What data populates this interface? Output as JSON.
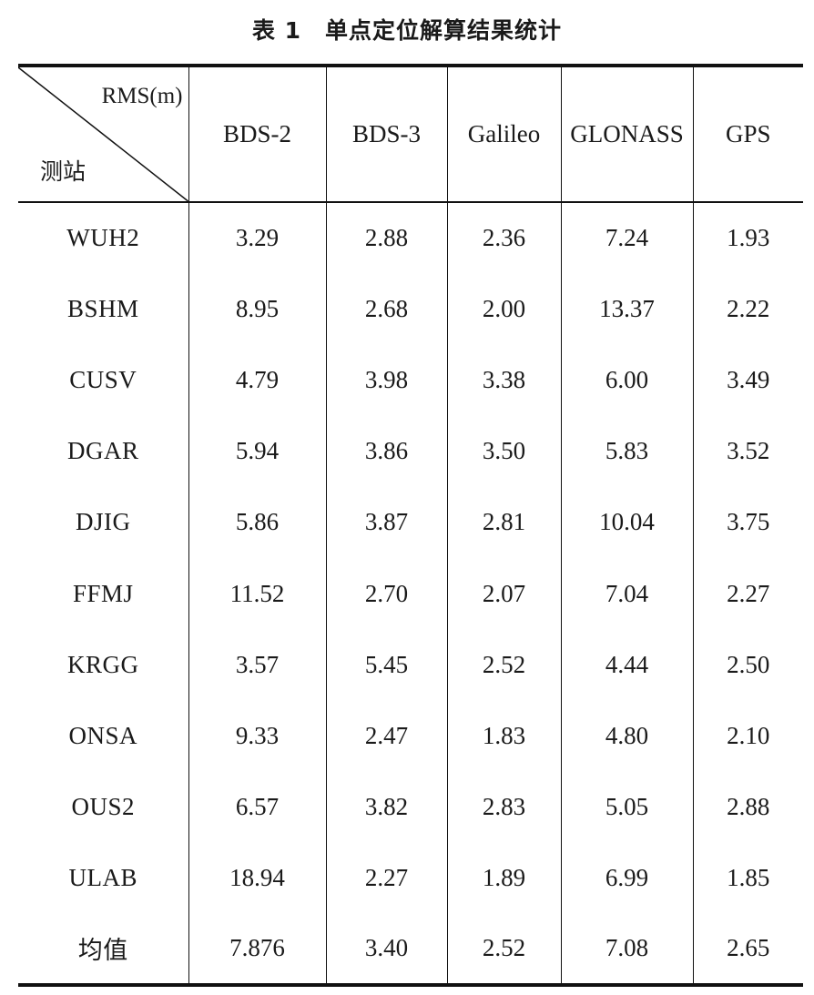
{
  "caption": {
    "number": "表 1",
    "text": "单点定位解算结果统计"
  },
  "table": {
    "corner": {
      "top": "RMS(m)",
      "bottom": "测站"
    },
    "columns": [
      "BDS-2",
      "BDS-3",
      "Galileo",
      "GLONASS",
      "GPS"
    ],
    "rows": [
      {
        "station": "WUH2",
        "values": [
          "3.29",
          "2.88",
          "2.36",
          "7.24",
          "1.93"
        ]
      },
      {
        "station": "BSHM",
        "values": [
          "8.95",
          "2.68",
          "2.00",
          "13.37",
          "2.22"
        ]
      },
      {
        "station": "CUSV",
        "values": [
          "4.79",
          "3.98",
          "3.38",
          "6.00",
          "3.49"
        ]
      },
      {
        "station": "DGAR",
        "values": [
          "5.94",
          "3.86",
          "3.50",
          "5.83",
          "3.52"
        ]
      },
      {
        "station": "DJIG",
        "values": [
          "5.86",
          "3.87",
          "2.81",
          "10.04",
          "3.75"
        ]
      },
      {
        "station": "FFMJ",
        "values": [
          "11.52",
          "2.70",
          "2.07",
          "7.04",
          "2.27"
        ]
      },
      {
        "station": "KRGG",
        "values": [
          "3.57",
          "5.45",
          "2.52",
          "4.44",
          "2.50"
        ]
      },
      {
        "station": "ONSA",
        "values": [
          "9.33",
          "2.47",
          "1.83",
          "4.80",
          "2.10"
        ]
      },
      {
        "station": "OUS2",
        "values": [
          "6.57",
          "3.82",
          "2.83",
          "5.05",
          "2.88"
        ]
      },
      {
        "station": "ULAB",
        "values": [
          "18.94",
          "2.27",
          "1.89",
          "6.99",
          "1.85"
        ]
      },
      {
        "station": "均值",
        "values": [
          "7.876",
          "3.40",
          "2.52",
          "7.08",
          "2.65"
        ]
      }
    ]
  }
}
